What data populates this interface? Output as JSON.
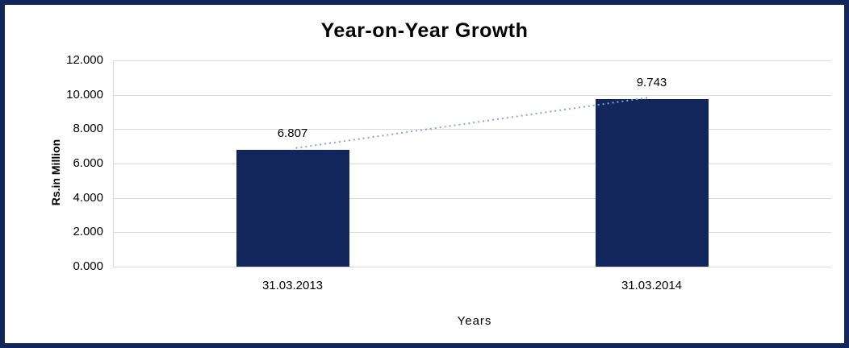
{
  "chart_data": {
    "type": "bar",
    "title": "Year-on-Year Growth",
    "categories": [
      "31.03.2013",
      "31.03.2014"
    ],
    "values": [
      6.807,
      9.743
    ],
    "value_labels": [
      "6.807",
      "9.743"
    ],
    "xlabel": "Years",
    "ylabel": "Rs.in Million",
    "ylim": [
      0,
      12
    ],
    "ytick_step": 2,
    "ytick_labels": [
      "0.000",
      "2.000",
      "4.000",
      "6.000",
      "8.000",
      "10.000",
      "12.000"
    ],
    "grid": true,
    "legend": "none",
    "has_trendline": true,
    "colors": {
      "bar": "#12265b",
      "border": "#12265b",
      "gridline": "#d9d9d9",
      "trendline": "#7fa7d9",
      "text": "#000000"
    }
  }
}
